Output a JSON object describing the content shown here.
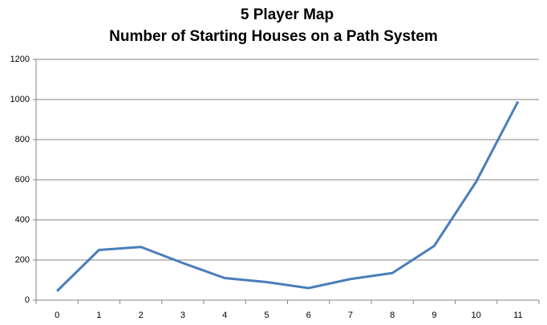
{
  "chart_data": {
    "type": "line",
    "title": [
      "5 Player Map",
      "Number of Starting Houses on a Path System"
    ],
    "categories": [
      "0",
      "1",
      "2",
      "3",
      "4",
      "5",
      "6",
      "7",
      "8",
      "9",
      "10",
      "11"
    ],
    "values": [
      45,
      250,
      265,
      185,
      110,
      90,
      60,
      105,
      135,
      270,
      590,
      990
    ],
    "color": "#4a7ebb",
    "ylim": [
      0,
      1200
    ],
    "yticks": [
      0,
      200,
      400,
      600,
      800,
      1000,
      1200
    ],
    "grid": true
  }
}
